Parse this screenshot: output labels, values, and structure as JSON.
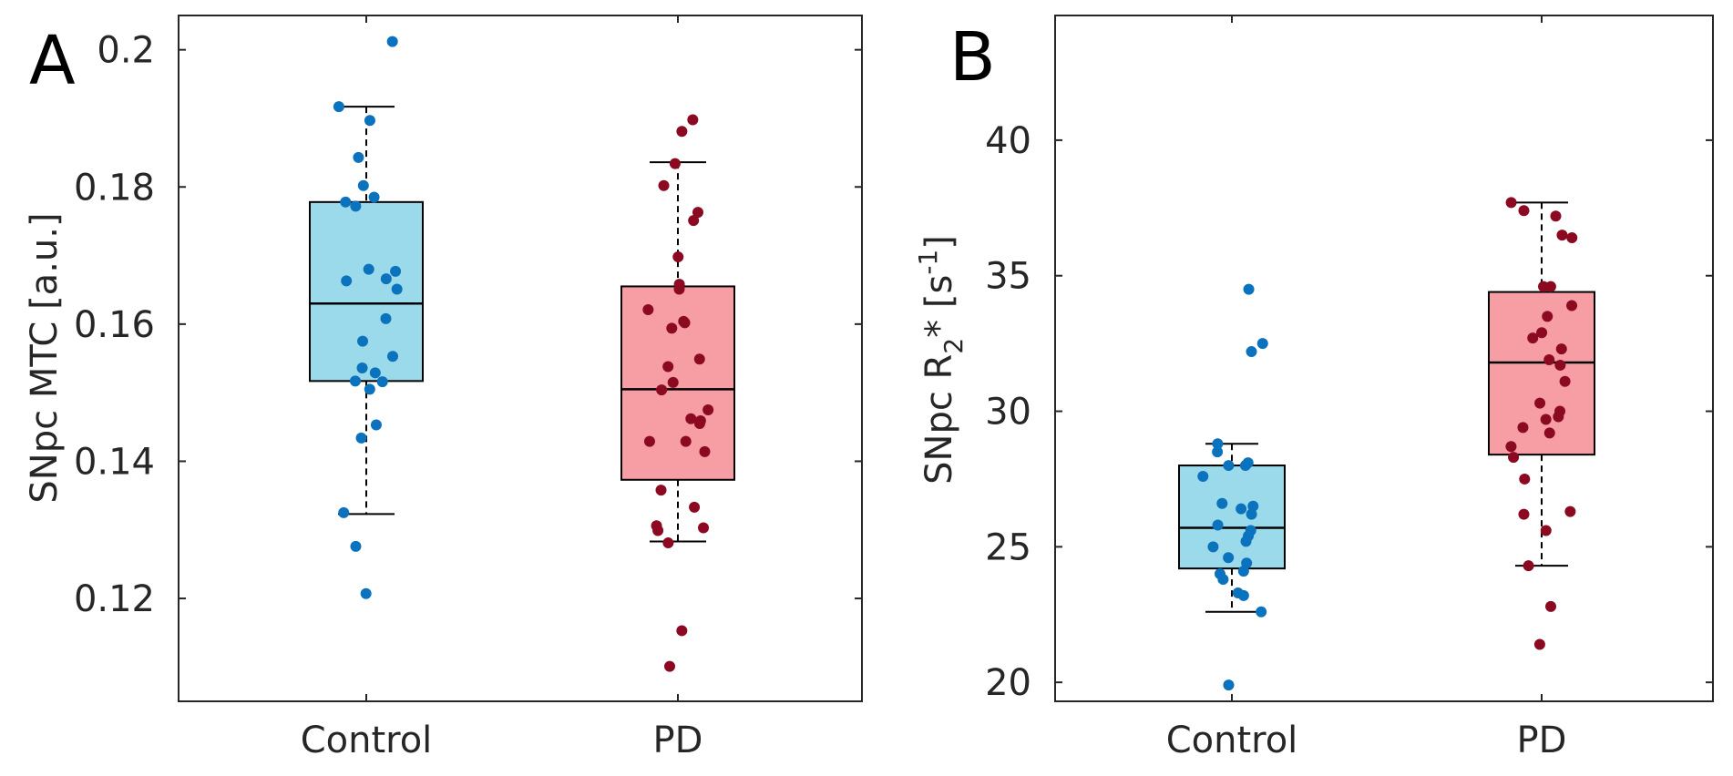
{
  "colors": {
    "control_box": "#9bdaea",
    "pd_box": "#f79da4",
    "control_points": "#0b72bd",
    "pd_points": "#8b0a22",
    "axis": "#262626"
  },
  "chart_data": [
    {
      "type": "box",
      "panel_label": "A",
      "ylabel": "SNpc MTC [a.u.]",
      "ylim": [
        0.105,
        0.205
      ],
      "yticks": [
        0.12,
        0.14,
        0.16,
        0.18,
        0.2
      ],
      "ytick_labels": [
        "0.12",
        "0.14",
        "0.16",
        "0.18",
        "0.2"
      ],
      "categories": [
        "Control",
        "PD"
      ],
      "groups": [
        {
          "name": "Control",
          "whisker_low": 0.1323,
          "q1": 0.1517,
          "median": 0.163,
          "q3": 0.1778,
          "whisker_high": 0.1917,
          "points": [
            0.2012,
            0.1917,
            0.1897,
            0.1843,
            0.1802,
            0.1785,
            0.1778,
            0.1772,
            0.168,
            0.1677,
            0.1666,
            0.1663,
            0.1651,
            0.1608,
            0.1575,
            0.1553,
            0.1536,
            0.1529,
            0.1517,
            0.1516,
            0.1505,
            0.1453,
            0.1434,
            0.1325,
            0.1276,
            0.1207
          ]
        },
        {
          "name": "PD",
          "whisker_low": 0.1283,
          "q1": 0.1373,
          "median": 0.1505,
          "q3": 0.1655,
          "whisker_high": 0.1836,
          "points": [
            0.1898,
            0.1881,
            0.1834,
            0.1802,
            0.1763,
            0.1751,
            0.1698,
            0.1658,
            0.1651,
            0.1621,
            0.1604,
            0.1602,
            0.1594,
            0.1549,
            0.1538,
            0.1515,
            0.1504,
            0.1475,
            0.1462,
            0.1459,
            0.1455,
            0.1429,
            0.1429,
            0.1414,
            0.1358,
            0.1333,
            0.1306,
            0.1303,
            0.1299,
            0.1281,
            0.1153,
            0.1101
          ]
        }
      ]
    },
    {
      "type": "box",
      "panel_label": "B",
      "ylabel_parts": [
        "SNpc R",
        "2",
        "* [s",
        "-1",
        "]"
      ],
      "ylim": [
        19.3,
        44.6
      ],
      "yticks": [
        20,
        25,
        30,
        35,
        40
      ],
      "ytick_labels": [
        "20",
        "25",
        "30",
        "35",
        "40"
      ],
      "categories": [
        "Control",
        "PD"
      ],
      "groups": [
        {
          "name": "Control",
          "whisker_low": 22.6,
          "q1": 24.2,
          "median": 25.7,
          "q3": 28.0,
          "whisker_high": 28.8,
          "points": [
            34.5,
            32.5,
            32.2,
            28.8,
            28.5,
            28.1,
            28.0,
            28.0,
            27.6,
            26.6,
            26.5,
            26.4,
            26.2,
            25.8,
            25.6,
            25.4,
            25.2,
            25.0,
            24.6,
            24.4,
            24.1,
            24.0,
            23.8,
            23.3,
            23.2,
            22.6,
            19.9
          ]
        },
        {
          "name": "PD",
          "whisker_low": 24.3,
          "q1": 28.4,
          "median": 31.8,
          "q3": 34.4,
          "whisker_high": 37.7,
          "points": [
            37.7,
            37.4,
            37.2,
            36.5,
            36.4,
            34.6,
            34.6,
            33.9,
            33.5,
            32.9,
            32.7,
            32.3,
            31.9,
            31.7,
            31.1,
            30.3,
            30.0,
            29.8,
            29.7,
            29.4,
            29.2,
            28.7,
            28.3,
            27.5,
            26.3,
            26.2,
            25.6,
            24.3,
            22.8,
            21.4
          ]
        }
      ]
    }
  ]
}
